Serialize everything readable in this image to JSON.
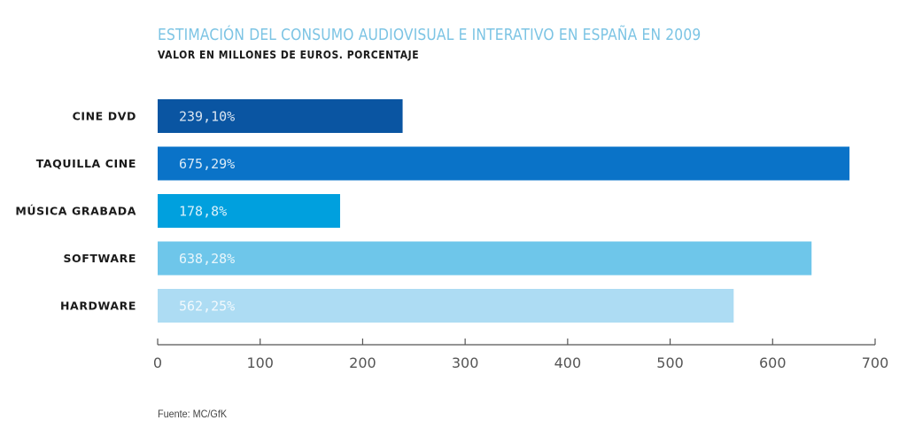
{
  "chart_data": {
    "type": "bar",
    "orientation": "horizontal",
    "title": "ESTIMACIÓN DEL CONSUMO AUDIOVISUAL E INTERATIVO EN ESPAÑA EN 2009",
    "subtitle": "VALOR EN MILLONES DE EUROS. PORCENTAJE",
    "categories": [
      "CINE DVD",
      "TAQUILLA CINE",
      "MÚSICA GRABADA",
      "SOFTWARE",
      "HARDWARE"
    ],
    "values": [
      239,
      675,
      178,
      638,
      562
    ],
    "percentages": [
      10,
      29,
      8,
      28,
      25
    ],
    "data_labels": [
      "239,10%",
      "675,29%",
      "178,8%",
      "638,28%",
      "562,25%"
    ],
    "colors": [
      "#0a55a2",
      "#0a73c8",
      "#00a0de",
      "#6ec6ea",
      "#addcf3"
    ],
    "xlabel": "",
    "ylabel": "",
    "xlim": [
      0,
      700
    ],
    "xticks": [
      0,
      100,
      200,
      300,
      400,
      500,
      600,
      700
    ],
    "grid": false,
    "legend": "none",
    "source": "Fuente: MC/GfK"
  }
}
